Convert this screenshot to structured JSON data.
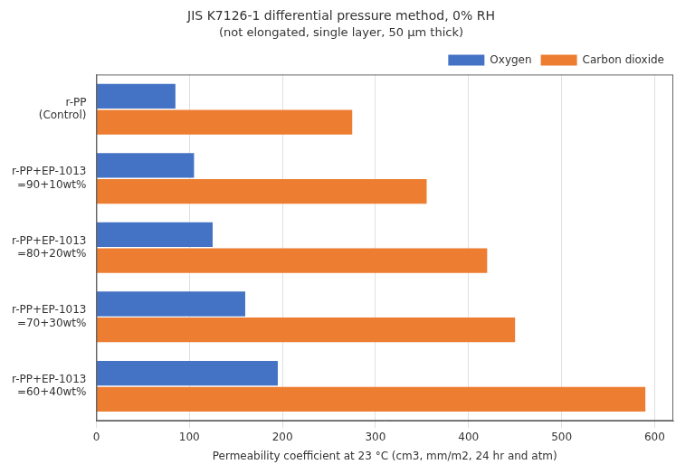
{
  "chart_data": {
    "type": "bar",
    "orientation": "horizontal",
    "title": "JIS K7126-1 differential pressure method, 0% RH",
    "subtitle": "(not elongated, single layer, 50 μm thick)",
    "x_label": "Permeability coefficient at 23 °C (cm3, mm/m2, 24 hr and atm)",
    "categories": [
      "r-PP\n(Control)",
      "r-PP+EP-1013\n=90+10wt%",
      "r-PP+EP-1013\n=80+20wt%",
      "r-PP+EP-1013\n=70+30wt%",
      "r-PP+EP-1013\n=60+40wt%"
    ],
    "series": [
      {
        "name": "Oxygen",
        "color": "#4472C4",
        "values": [
          85,
          105,
          125,
          160,
          195
        ]
      },
      {
        "name": "Carbon dioxide",
        "color": "#ED7D31",
        "values": [
          275,
          355,
          420,
          450,
          590
        ]
      }
    ],
    "xlim": [
      0,
      620
    ],
    "xticks": [
      0,
      100,
      200,
      300,
      400,
      500,
      600
    ],
    "grid": true,
    "legend": "upper right"
  }
}
